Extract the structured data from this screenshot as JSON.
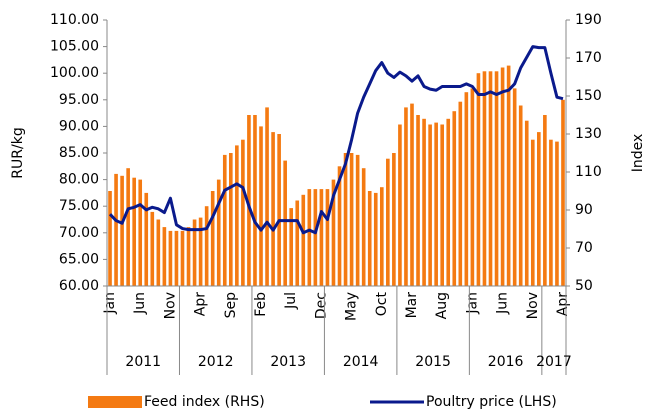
{
  "chart_data": {
    "type": "bar-line",
    "y_label": "RUR/kg",
    "y2_label": "Index",
    "categories": [
      "Jan",
      null,
      null,
      null,
      null,
      "Jun",
      null,
      null,
      null,
      null,
      "Nov",
      null,
      null,
      null,
      null,
      "Apr",
      null,
      null,
      null,
      null,
      "Sep",
      null,
      null,
      null,
      null,
      "Feb",
      null,
      null,
      null,
      null,
      "Jul",
      null,
      null,
      null,
      null,
      "Dec",
      null,
      null,
      null,
      null,
      "May",
      null,
      null,
      null,
      null,
      "Oct",
      null,
      null,
      null,
      null,
      "Mar",
      null,
      null,
      null,
      null,
      "Aug",
      null,
      null,
      null,
      null,
      "Jan",
      null,
      null,
      null,
      null,
      "Jun",
      null,
      null,
      null,
      null,
      "Nov",
      null,
      null,
      null,
      null,
      "Apr"
    ],
    "years": [
      "2011",
      "2012",
      "2013",
      "2014",
      "2015",
      "2016",
      "2017"
    ],
    "series": [
      {
        "name": "Feed index (RHS)",
        "color": "#f47a12",
        "axis": "y2",
        "kind": "bar",
        "values": [
          100,
          109,
          108,
          112,
          107,
          106,
          99,
          89,
          85,
          81,
          79,
          79,
          79,
          81,
          85,
          86,
          92,
          100,
          106,
          119,
          120,
          124,
          127,
          140,
          140,
          134,
          144,
          131,
          130,
          116,
          91,
          95,
          98,
          101,
          101,
          101,
          101,
          106,
          113,
          120,
          120,
          119,
          112,
          100,
          99,
          102,
          117,
          120,
          135,
          144,
          146,
          140,
          138,
          135,
          136,
          135,
          138,
          142,
          147,
          152,
          154,
          162,
          163,
          163,
          163,
          165,
          166,
          154,
          145,
          137,
          127,
          131,
          140,
          127,
          126,
          148
        ]
      },
      {
        "name": "Poultry price (LHS)",
        "color": "#0a1a8c",
        "axis": "y",
        "kind": "line",
        "values": [
          73.5,
          72.3,
          71.8,
          74.5,
          74.8,
          75.3,
          74.3,
          74.8,
          74.5,
          73.8,
          76.5,
          71.5,
          70.8,
          70.6,
          70.6,
          70.6,
          70.8,
          73,
          75.5,
          78,
          78.6,
          79.2,
          78.5,
          75,
          72,
          70.5,
          72,
          70.5,
          72.3,
          72.3,
          72.3,
          72.3,
          70,
          70.5,
          70,
          74,
          72.5,
          77,
          80,
          83,
          87.5,
          92.5,
          95.5,
          98,
          100.5,
          102,
          100,
          99.2,
          100.2,
          99.5,
          98.5,
          99.5,
          97.5,
          97,
          96.8,
          97.5,
          97.5,
          97.5,
          97.5,
          98,
          97.5,
          96,
          96,
          96.5,
          96,
          96.5,
          96.8,
          98,
          101,
          103,
          105,
          104.8,
          104.8,
          100,
          95.5,
          95.2
        ]
      }
    ],
    "ylim": [
      60,
      110
    ],
    "yticks": [
      {
        "value": 60,
        "label": "60.00"
      },
      {
        "value": 65,
        "label": "65.00"
      },
      {
        "value": 70,
        "label": "70.00"
      },
      {
        "value": 75,
        "label": "75.00"
      },
      {
        "value": 80,
        "label": "80.00"
      },
      {
        "value": 85,
        "label": "85.00"
      },
      {
        "value": 90,
        "label": "90.00"
      },
      {
        "value": 95,
        "label": "95.00"
      },
      {
        "value": 100,
        "label": "100.00"
      },
      {
        "value": 105,
        "label": "105.00"
      },
      {
        "value": 110,
        "label": "110.00"
      }
    ],
    "y2lim": [
      50,
      190
    ],
    "y2ticks": [
      50,
      70,
      90,
      110,
      130,
      150,
      170,
      190
    ],
    "grid": false,
    "legend": "bottom"
  }
}
